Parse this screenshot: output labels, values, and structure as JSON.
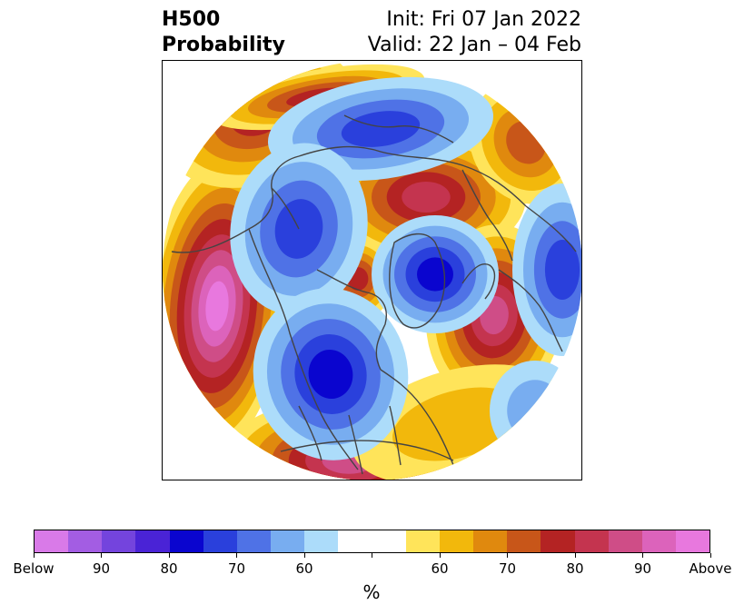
{
  "header": {
    "title_line1": "H500",
    "title_line2": "Probability",
    "init": "Init: Fri 07 Jan 2022",
    "valid": "Valid: 22 Jan – 04 Feb"
  },
  "map": {
    "projection": "north-polar-stereographic",
    "basemap": "coastlines-and-borders"
  },
  "colorbar": {
    "unit": "%",
    "colors": [
      "#d97ae8",
      "#a35de3",
      "#7444dd",
      "#4a23d6",
      "#0a05cf",
      "#2a40dc",
      "#4f72e6",
      "#78adf0",
      "#acdcfa",
      "#ffffff",
      "#ffffff",
      "#ffe45a",
      "#f2b80c",
      "#e0890e",
      "#c85619",
      "#b42323",
      "#c4344f",
      "#cf4d87",
      "#dc63bb",
      "#e878de"
    ],
    "ticks": [
      "Below",
      "90",
      "80",
      "70",
      "60",
      "",
      "60",
      "70",
      "80",
      "90",
      "Above"
    ]
  },
  "features": {
    "above_color_scale": [
      "#ffe45a",
      "#f2b80c",
      "#e0890e",
      "#c85619",
      "#b42323",
      "#c4344f",
      "#cf4d87",
      "#dc63bb",
      "#e878de"
    ],
    "below_color_scale": [
      "#acdcfa",
      "#78adf0",
      "#4f72e6",
      "#2a40dc",
      "#0a05cf"
    ]
  }
}
